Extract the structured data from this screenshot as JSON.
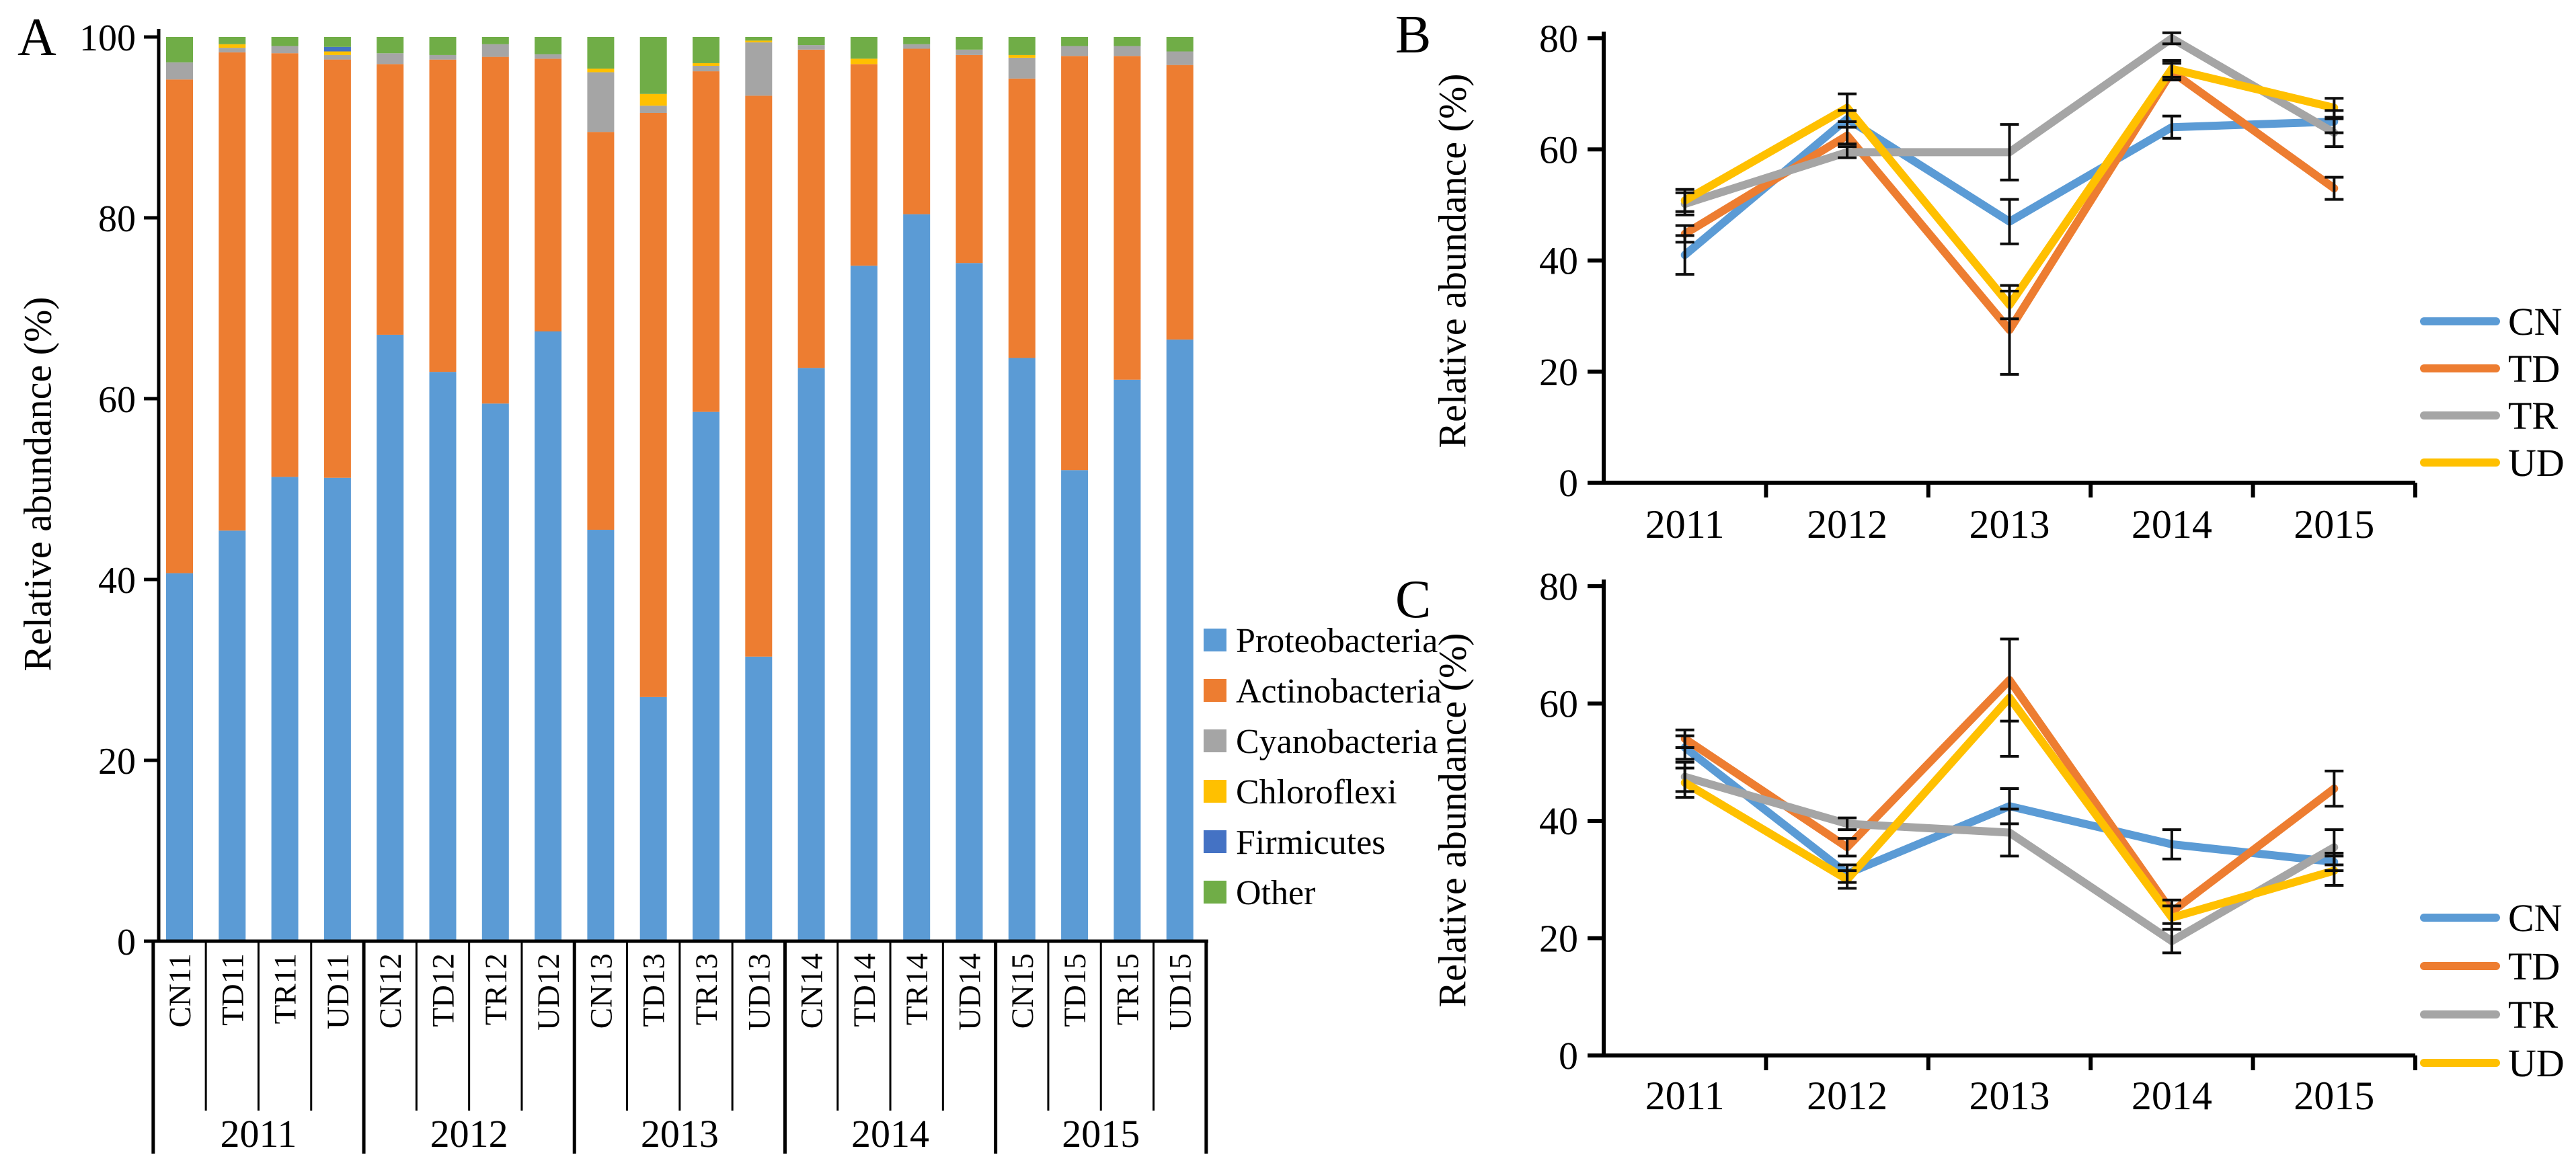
{
  "figure": {
    "background": "#ffffff",
    "axis_color": "#000000",
    "error_bar_color": "#0d0d0d"
  },
  "chart_data": [
    {
      "id": "A",
      "type": "bar",
      "stacked": true,
      "panel_label": "A",
      "ylabel": "Relative abundance (%)",
      "ylim": [
        0,
        100
      ],
      "ytick_step": 20,
      "yticks": [
        0,
        20,
        40,
        60,
        80,
        100
      ],
      "grid": false,
      "legend_position": "right",
      "categories": [
        "CN11",
        "TD11",
        "TR11",
        "UD11",
        "CN12",
        "TD12",
        "TR12",
        "UD12",
        "CN13",
        "TD13",
        "TR13",
        "UD13",
        "CN14",
        "TD14",
        "TR14",
        "UD14",
        "CN15",
        "TD15",
        "TR15",
        "UD15"
      ],
      "group_labels": [
        "2011",
        "2012",
        "2013",
        "2014",
        "2015"
      ],
      "series": [
        {
          "name": "Proteobacteria",
          "color": "#5B9BD5",
          "values": [
            40.7,
            45.5,
            51.4,
            51.3,
            67.0,
            62.9,
            59.4,
            67.3,
            45.5,
            27.0,
            58.6,
            31.5,
            63.4,
            74.7,
            80.4,
            75.0,
            64.5,
            52.1,
            62.1,
            66.6
          ]
        },
        {
          "name": "Actinobacteria",
          "color": "#ED7D31",
          "values": [
            54.6,
            53.0,
            46.9,
            46.3,
            29.9,
            34.5,
            38.3,
            30.1,
            44.0,
            64.6,
            37.7,
            62.1,
            35.2,
            22.3,
            18.3,
            23.0,
            30.9,
            45.8,
            35.8,
            30.4
          ]
        },
        {
          "name": "Cyanobacteria",
          "color": "#A5A5A5",
          "values": [
            1.9,
            0.5,
            0.8,
            0.5,
            1.2,
            0.5,
            1.4,
            0.5,
            6.6,
            0.8,
            0.6,
            5.9,
            0.5,
            0.0,
            0.5,
            0.6,
            2.3,
            1.1,
            1.1,
            1.5
          ]
        },
        {
          "name": "Chloroflexi",
          "color": "#FFC000",
          "values": [
            0.0,
            0.4,
            0.0,
            0.4,
            0.0,
            0.0,
            0.0,
            0.0,
            0.4,
            1.3,
            0.3,
            0.2,
            0.0,
            0.6,
            0.0,
            0.0,
            0.3,
            0.0,
            0.0,
            0.0
          ]
        },
        {
          "name": "Firmicutes",
          "color": "#4472C4",
          "values": [
            0.0,
            0.0,
            0.0,
            0.5,
            0.0,
            0.0,
            0.0,
            0.0,
            0.0,
            0.0,
            0.0,
            0.0,
            0.0,
            0.0,
            0.0,
            0.0,
            0.0,
            0.0,
            0.0,
            0.0
          ]
        },
        {
          "name": "Other",
          "color": "#70AD47",
          "values": [
            2.8,
            0.8,
            1.0,
            1.1,
            1.8,
            2.0,
            0.8,
            1.9,
            3.5,
            6.3,
            2.9,
            0.4,
            0.9,
            2.4,
            0.8,
            1.4,
            2.0,
            1.0,
            1.0,
            1.6
          ]
        }
      ]
    },
    {
      "id": "B",
      "type": "line",
      "panel_label": "B",
      "ylabel": "Relative abundance (%)",
      "ylim": [
        0,
        80
      ],
      "ytick_step": 20,
      "yticks": [
        0,
        20,
        40,
        60,
        80
      ],
      "grid": false,
      "legend_position": "right",
      "x": [
        "2011",
        "2012",
        "2013",
        "2014",
        "2015"
      ],
      "series": [
        {
          "name": "CN",
          "color": "#5B9BD5",
          "values": [
            41.0,
            65.5,
            47.0,
            64.0,
            65.0
          ],
          "errors": [
            3.5,
            1.5,
            4.0,
            2.0,
            2.0
          ]
        },
        {
          "name": "TD",
          "color": "#ED7D31",
          "values": [
            44.8,
            62.5,
            27.5,
            74.0,
            53.0
          ],
          "errors": [
            1.5,
            1.5,
            8.0,
            1.5,
            2.0
          ]
        },
        {
          "name": "TR",
          "color": "#A5A5A5",
          "values": [
            50.2,
            59.5,
            59.5,
            80.0,
            63.0
          ],
          "errors": [
            2.0,
            1.0,
            5.0,
            1.0,
            2.5
          ]
        },
        {
          "name": "UD",
          "color": "#FFC000",
          "values": [
            50.8,
            67.5,
            32.0,
            74.5,
            67.5
          ],
          "errors": [
            2.0,
            2.5,
            2.5,
            1.5,
            1.7
          ]
        }
      ]
    },
    {
      "id": "C",
      "type": "line",
      "panel_label": "C",
      "ylabel": "Relative abundance (%)",
      "ylim": [
        0,
        80
      ],
      "ytick_step": 20,
      "yticks": [
        0,
        20,
        40,
        60,
        80
      ],
      "grid": false,
      "legend_position": "right",
      "x": [
        "2011",
        "2012",
        "2013",
        "2014",
        "2015"
      ],
      "series": [
        {
          "name": "CN",
          "color": "#5B9BD5",
          "values": [
            52.5,
            31.0,
            42.5,
            36.0,
            33.0
          ],
          "errors": [
            2.0,
            1.5,
            3.0,
            2.5,
            1.5
          ]
        },
        {
          "name": "TD",
          "color": "#ED7D31",
          "values": [
            54.0,
            35.5,
            64.0,
            24.5,
            45.5
          ],
          "errors": [
            1.5,
            1.5,
            7.0,
            2.0,
            3.0
          ]
        },
        {
          "name": "TR",
          "color": "#A5A5A5",
          "values": [
            47.5,
            39.5,
            38.0,
            19.5,
            35.5
          ],
          "errors": [
            2.5,
            1.0,
            4.0,
            2.0,
            3.0
          ]
        },
        {
          "name": "UD",
          "color": "#FFC000",
          "values": [
            46.5,
            30.0,
            61.0,
            23.5,
            31.5
          ],
          "errors": [
            2.5,
            1.5,
            10.0,
            2.0,
            2.5
          ]
        }
      ]
    }
  ]
}
